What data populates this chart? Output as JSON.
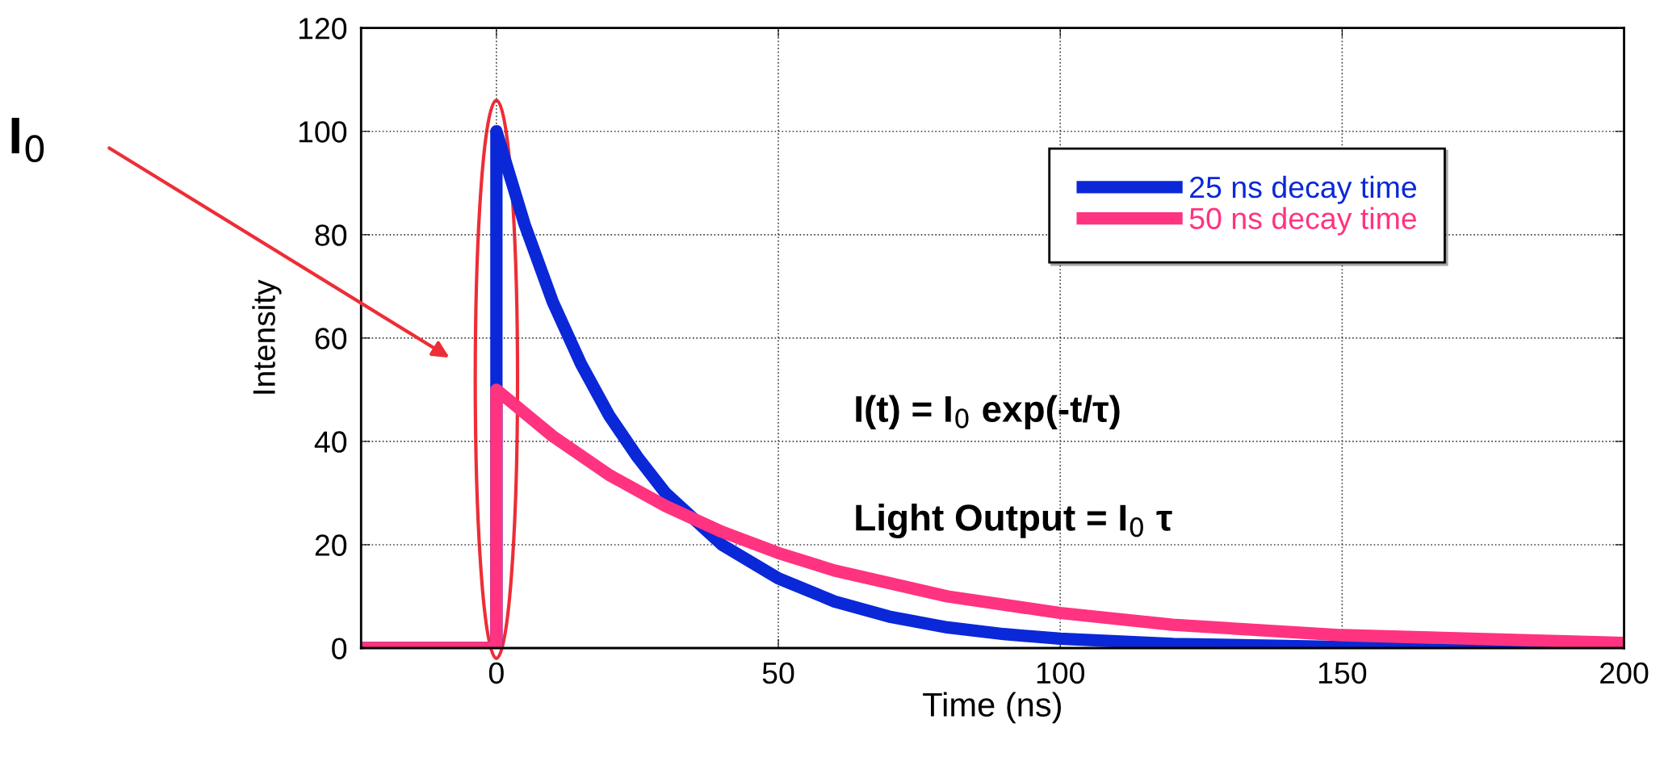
{
  "chart_data": {
    "type": "line",
    "xlabel": "Time (ns)",
    "ylabel": "Intensity",
    "xlim": [
      -24,
      200
    ],
    "xticks": [
      0,
      50,
      100,
      150,
      200
    ],
    "ylim": [
      0,
      120
    ],
    "yticks": [
      0,
      20,
      40,
      60,
      80,
      100,
      120
    ],
    "grid": true,
    "legend": "top right",
    "line_style": "solid",
    "series": [
      {
        "name": "25 ns decay time",
        "color": "#0a28d8",
        "x": [
          -24,
          -1,
          0,
          0,
          5,
          10,
          15,
          20,
          25,
          30,
          40,
          50,
          60,
          70,
          80,
          90,
          100,
          120,
          150,
          200
        ],
        "values": [
          0,
          0,
          0,
          100,
          82,
          67,
          55,
          45,
          37,
          30,
          20,
          13.5,
          9,
          6,
          4,
          2.7,
          1.8,
          0.8,
          0.2,
          0
        ]
      },
      {
        "name": "50 ns decay time",
        "color": "#ff3380",
        "x": [
          -24,
          -1,
          0,
          0,
          10,
          20,
          30,
          40,
          50,
          60,
          80,
          100,
          120,
          150,
          200
        ],
        "values": [
          0,
          0,
          0,
          50,
          41,
          33.5,
          27.5,
          22.5,
          18.4,
          15,
          10,
          6.8,
          4.5,
          2.5,
          1
        ]
      }
    ],
    "annotations": [
      "I$_{0}$",
      "I(t) = I$_{0}$ exp(-t/τ)",
      "Light Output = I$_{0}$ τ"
    ]
  }
}
